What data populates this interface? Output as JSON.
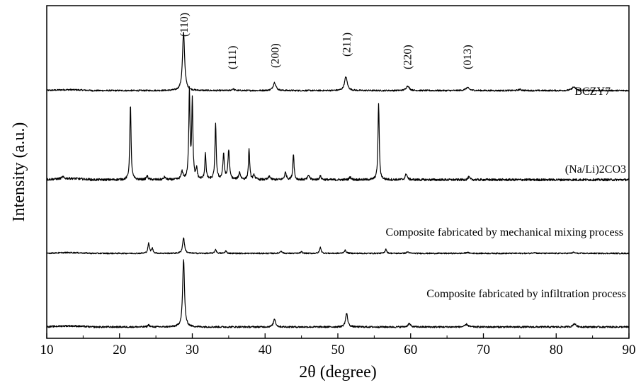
{
  "chart_data": {
    "type": "line",
    "title": "",
    "xlabel": "2θ (degree)",
    "ylabel": "Intensity (a.u.)",
    "xlim": [
      10,
      90
    ],
    "xticks": [
      10,
      20,
      30,
      40,
      50,
      60,
      70,
      80,
      90
    ],
    "xtick_labels": [
      "10",
      "20",
      "30",
      "40",
      "50",
      "60",
      "70",
      "80",
      "90"
    ],
    "y_ticks_shown": false,
    "grid": false,
    "legend": "none",
    "series": [
      {
        "name": "BCZY7",
        "baseline": 0.0,
        "peaks": [
          {
            "x": 28.8,
            "h": 1.0,
            "w": 0.35
          },
          {
            "x": 35.6,
            "h": 0.03,
            "w": 0.35
          },
          {
            "x": 41.3,
            "h": 0.14,
            "w": 0.45
          },
          {
            "x": 51.1,
            "h": 0.24,
            "w": 0.45
          },
          {
            "x": 59.6,
            "h": 0.08,
            "w": 0.5
          },
          {
            "x": 67.8,
            "h": 0.05,
            "w": 0.6
          },
          {
            "x": 75.0,
            "h": 0.02,
            "w": 0.5
          },
          {
            "x": 82.4,
            "h": 0.06,
            "w": 0.6
          }
        ]
      },
      {
        "name": "(Na/Li)2CO3",
        "baseline": 0.0,
        "peaks": [
          {
            "x": 12.2,
            "h": 0.02,
            "w": 0.3
          },
          {
            "x": 21.5,
            "h": 0.85,
            "w": 0.2
          },
          {
            "x": 23.8,
            "h": 0.04,
            "w": 0.3
          },
          {
            "x": 26.2,
            "h": 0.03,
            "w": 0.3
          },
          {
            "x": 28.6,
            "h": 0.09,
            "w": 0.3
          },
          {
            "x": 29.6,
            "h": 1.0,
            "w": 0.2
          },
          {
            "x": 30.0,
            "h": 0.88,
            "w": 0.2
          },
          {
            "x": 30.6,
            "h": 0.12,
            "w": 0.2
          },
          {
            "x": 31.8,
            "h": 0.3,
            "w": 0.2
          },
          {
            "x": 33.2,
            "h": 0.64,
            "w": 0.2
          },
          {
            "x": 34.3,
            "h": 0.28,
            "w": 0.25
          },
          {
            "x": 35.0,
            "h": 0.33,
            "w": 0.25
          },
          {
            "x": 36.5,
            "h": 0.08,
            "w": 0.3
          },
          {
            "x": 37.8,
            "h": 0.34,
            "w": 0.2
          },
          {
            "x": 38.5,
            "h": 0.05,
            "w": 0.3
          },
          {
            "x": 40.6,
            "h": 0.04,
            "w": 0.3
          },
          {
            "x": 42.8,
            "h": 0.08,
            "w": 0.3
          },
          {
            "x": 43.9,
            "h": 0.3,
            "w": 0.2
          },
          {
            "x": 46.0,
            "h": 0.05,
            "w": 0.3
          },
          {
            "x": 47.6,
            "h": 0.04,
            "w": 0.3
          },
          {
            "x": 51.7,
            "h": 0.03,
            "w": 0.3
          },
          {
            "x": 55.6,
            "h": 0.86,
            "w": 0.2
          },
          {
            "x": 59.4,
            "h": 0.07,
            "w": 0.3
          },
          {
            "x": 68.0,
            "h": 0.03,
            "w": 0.3
          }
        ]
      },
      {
        "name": "Composite fabricated by mechanical mixing process",
        "baseline": 0.0,
        "peaks": [
          {
            "x": 24.0,
            "h": 0.2,
            "w": 0.25
          },
          {
            "x": 24.5,
            "h": 0.1,
            "w": 0.25
          },
          {
            "x": 28.8,
            "h": 0.32,
            "w": 0.3
          },
          {
            "x": 33.2,
            "h": 0.08,
            "w": 0.25
          },
          {
            "x": 34.6,
            "h": 0.05,
            "w": 0.25
          },
          {
            "x": 42.2,
            "h": 0.05,
            "w": 0.3
          },
          {
            "x": 45.0,
            "h": 0.03,
            "w": 0.3
          },
          {
            "x": 47.6,
            "h": 0.12,
            "w": 0.25
          },
          {
            "x": 51.0,
            "h": 0.06,
            "w": 0.35
          },
          {
            "x": 56.6,
            "h": 0.09,
            "w": 0.25
          },
          {
            "x": 59.6,
            "h": 0.03,
            "w": 0.35
          },
          {
            "x": 67.8,
            "h": 0.02,
            "w": 0.4
          },
          {
            "x": 77.0,
            "h": 0.02,
            "w": 0.4
          },
          {
            "x": 82.4,
            "h": 0.02,
            "w": 0.4
          }
        ]
      },
      {
        "name": "Composite fabricated by infiltration process",
        "baseline": 0.0,
        "peaks": [
          {
            "x": 24.0,
            "h": 0.03,
            "w": 0.3
          },
          {
            "x": 28.8,
            "h": 1.0,
            "w": 0.3
          },
          {
            "x": 41.3,
            "h": 0.12,
            "w": 0.35
          },
          {
            "x": 51.2,
            "h": 0.2,
            "w": 0.35
          },
          {
            "x": 59.8,
            "h": 0.05,
            "w": 0.4
          },
          {
            "x": 67.7,
            "h": 0.04,
            "w": 0.45
          },
          {
            "x": 82.5,
            "h": 0.05,
            "w": 0.45
          }
        ]
      }
    ],
    "peak_labels": [
      {
        "text": "(110)",
        "x": 28.8
      },
      {
        "text": "(111)",
        "x": 35.4
      },
      {
        "text": "(200)",
        "x": 41.3
      },
      {
        "text": "(211)",
        "x": 51.1
      },
      {
        "text": "(220)",
        "x": 59.5
      },
      {
        "text": "(013)",
        "x": 67.7
      }
    ]
  }
}
